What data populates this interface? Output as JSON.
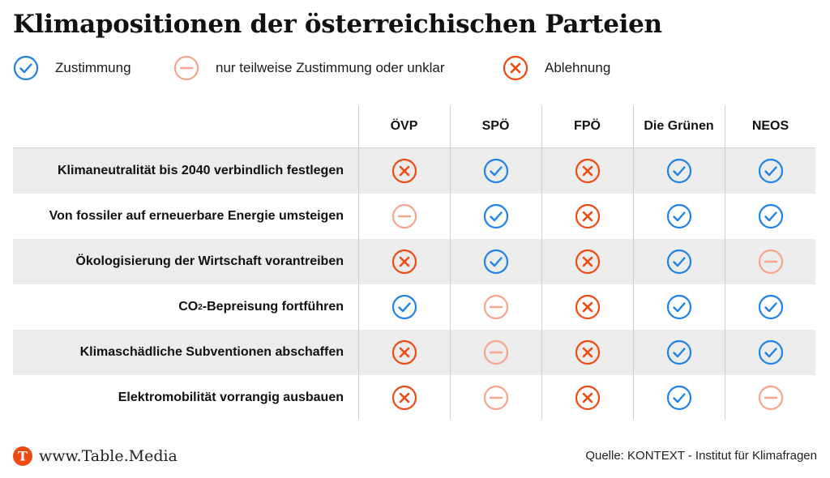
{
  "title": "Klimapositionen der österreichischen Parteien",
  "legend": [
    {
      "key": "yes",
      "icon": "check-icon",
      "label": "Zustimmung"
    },
    {
      "key": "partial",
      "icon": "minus-icon",
      "label": "nur teilweise Zustimmung oder unklar"
    },
    {
      "key": "no",
      "icon": "cross-icon",
      "label": "Ablehnung"
    }
  ],
  "colors": {
    "yes": "#1e82e6",
    "partial": "#f5a58c",
    "no": "#ee4b12",
    "row_shade": "#ececec",
    "grid": "#cfcfcf"
  },
  "chart_data": {
    "type": "table",
    "title": "Klimapositionen der österreichischen Parteien",
    "columns": [
      "ÖVP",
      "SPÖ",
      "FPÖ",
      "Die Grünen",
      "NEOS"
    ],
    "rows": [
      {
        "label": "Klimaneutralität bis 2040 verbindlich festlegen",
        "values": [
          "no",
          "yes",
          "no",
          "yes",
          "yes"
        ]
      },
      {
        "label": "Von fossiler auf erneuerbare Energie umsteigen",
        "values": [
          "partial",
          "yes",
          "no",
          "yes",
          "yes"
        ]
      },
      {
        "label": "Ökologisierung der Wirtschaft vorantreiben",
        "values": [
          "no",
          "yes",
          "no",
          "yes",
          "partial"
        ]
      },
      {
        "label": "CO₂-Bepreisung fortführen",
        "values": [
          "yes",
          "partial",
          "no",
          "yes",
          "yes"
        ]
      },
      {
        "label": "Klimaschädliche Subventionen abschaffen",
        "values": [
          "no",
          "partial",
          "no",
          "yes",
          "yes"
        ]
      },
      {
        "label": "Elektromobilität vorrangig ausbauen",
        "values": [
          "no",
          "partial",
          "no",
          "yes",
          "partial"
        ]
      }
    ]
  },
  "footer": {
    "logo_letter": "T",
    "site": "www.Table.Media",
    "source": "Quelle: KONTEXT - Institut für Klimafragen"
  }
}
